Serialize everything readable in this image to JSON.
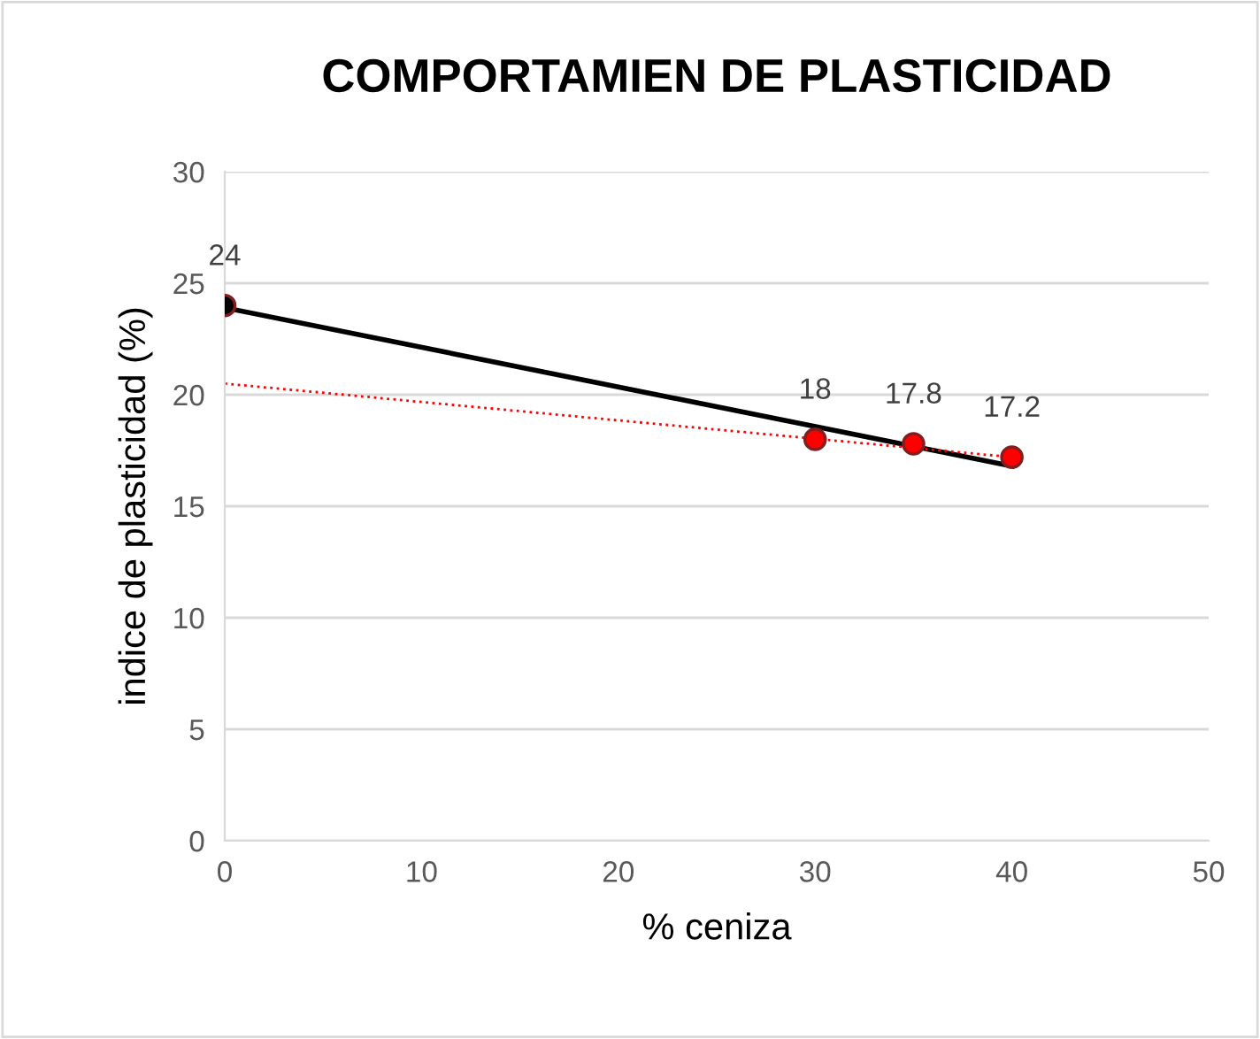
{
  "chart_data": {
    "type": "scatter",
    "title": "COMPORTAMIEN DE PLASTICIDAD",
    "xlabel": "% ceniza",
    "ylabel": "indice de plasticidad (%)",
    "xlim": [
      0,
      50
    ],
    "xticks": [
      0,
      10,
      20,
      30,
      40,
      50
    ],
    "ylim": [
      0,
      30
    ],
    "yticks": [
      0,
      5,
      10,
      15,
      20,
      25,
      30
    ],
    "grid": "y",
    "legend": false,
    "series": [
      {
        "type": "line",
        "x": [
          0,
          40
        ],
        "values": [
          23.9,
          16.8
        ],
        "color": "#000000",
        "line_style": "solid",
        "marker": "none"
      },
      {
        "type": "line",
        "x": [
          0,
          40
        ],
        "values": [
          20.5,
          17.2
        ],
        "color": "#ff0000",
        "line_style": "dotted",
        "marker": "none"
      },
      {
        "x": [
          0,
          30,
          35,
          40
        ],
        "values": [
          24,
          18,
          17.8,
          17.2
        ],
        "colors": [
          "#000000",
          "#ff0000",
          "#ff0000",
          "#ff0000"
        ],
        "marker": "circle",
        "value_labels": [
          "24",
          "18",
          "17.8",
          "17.2"
        ]
      }
    ]
  }
}
